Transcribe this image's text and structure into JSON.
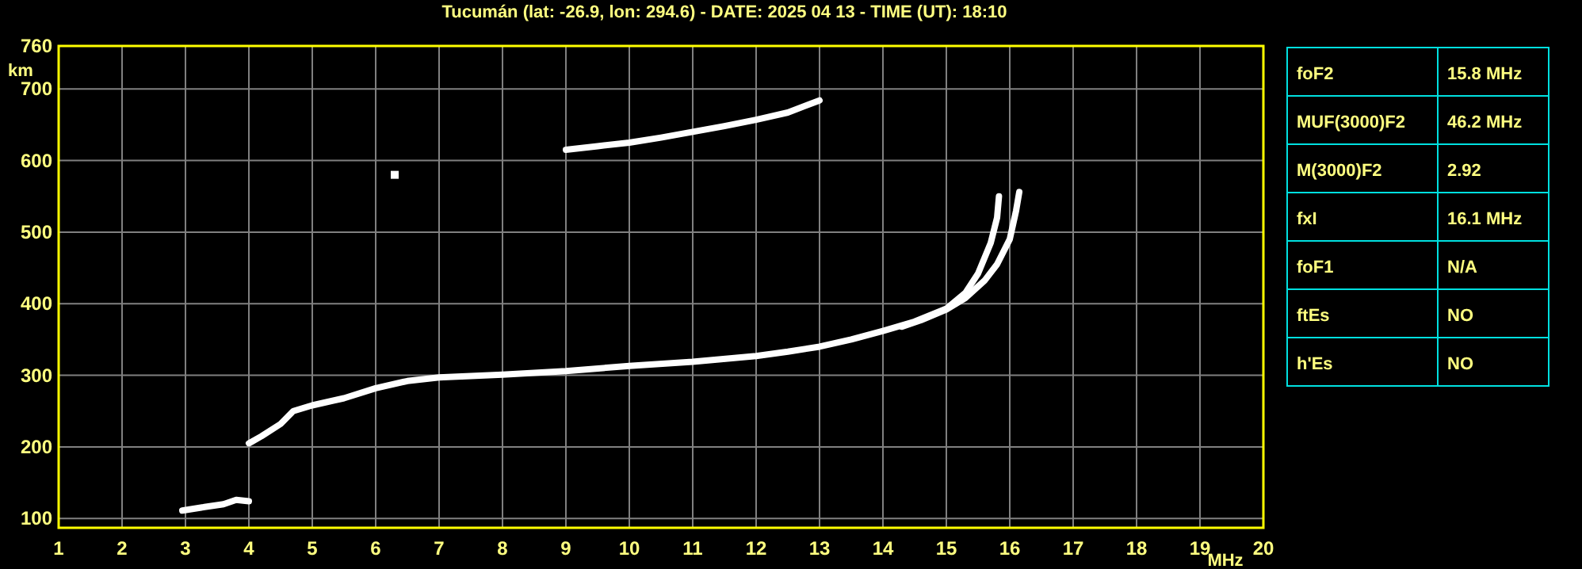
{
  "chart_data": [
    {
      "type": "line",
      "title": "Tucumán (lat: -26.9, lon: 294.6) - DATE: 2025 04 13 - TIME (UT): 18:10",
      "xlabel": "MHz",
      "ylabel": "km",
      "xlim": [
        1,
        20
      ],
      "ylim": [
        87,
        760
      ],
      "xticks": [
        1,
        2,
        3,
        4,
        5,
        6,
        7,
        8,
        9,
        10,
        11,
        12,
        13,
        14,
        15,
        16,
        17,
        18,
        19,
        20
      ],
      "yticks": [
        100,
        200,
        300,
        400,
        500,
        600,
        700,
        760
      ],
      "grid": true,
      "series": [
        {
          "color": "#ffffff",
          "x": [
            2.95,
            3.3,
            3.6,
            3.8,
            4.0
          ],
          "values": [
            111,
            116,
            120,
            126,
            124
          ]
        },
        {
          "color": "#ffffff",
          "x": [
            4.0,
            4.2,
            4.5,
            4.7,
            5.0,
            5.5,
            6,
            6.5,
            7,
            7.5,
            8,
            9,
            10,
            11,
            12,
            12.5,
            13,
            13.5,
            14,
            14.5,
            15,
            15.3,
            15.5,
            15.7,
            15.8,
            15.83
          ],
          "values": [
            205,
            215,
            232,
            250,
            258,
            268,
            282,
            292,
            297,
            299,
            301,
            306,
            313,
            319,
            327,
            333,
            340,
            350,
            362,
            375,
            393,
            415,
            442,
            485,
            520,
            550
          ]
        },
        {
          "color": "#ffffff",
          "x": [
            14.3,
            14.6,
            15,
            15.3,
            15.6,
            15.8,
            16,
            16.1,
            16.15
          ],
          "values": [
            368,
            377,
            392,
            408,
            432,
            455,
            490,
            530,
            556
          ]
        },
        {
          "color": "#ffffff",
          "x": [
            9,
            9.5,
            10,
            10.5,
            11,
            11.5,
            12,
            12.5,
            13
          ],
          "values": [
            615,
            620,
            625,
            632,
            640,
            648,
            657,
            667,
            684
          ]
        },
        {
          "type": "scatter",
          "marker": "square",
          "color": "#ffffff",
          "x": [
            6.3
          ],
          "values": [
            580
          ]
        }
      ]
    },
    {
      "type": "other",
      "categories": [
        "foF2",
        "MUF(3000)F2",
        "M(3000)F2",
        "fxI",
        "foF1",
        "ftEs",
        "h'Es"
      ],
      "value_labels": [
        "15.8 MHz",
        "46.2 MHz",
        "2.92",
        "16.1 MHz",
        "N/A",
        "NO",
        "NO"
      ]
    }
  ]
}
